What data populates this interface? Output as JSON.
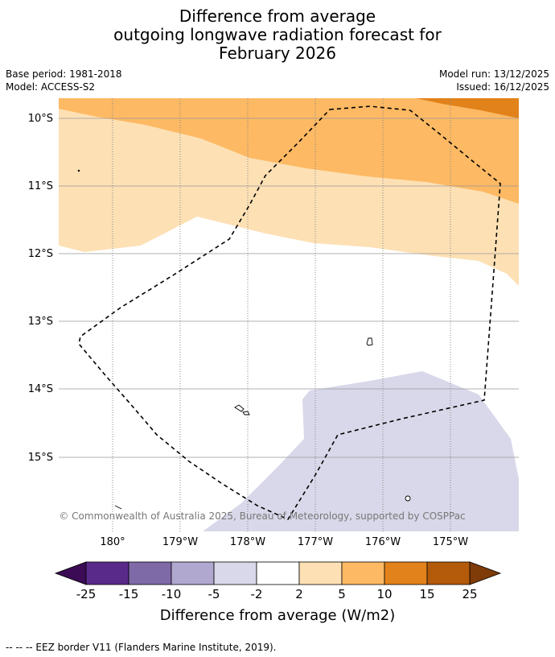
{
  "title": {
    "line1": "Difference from average",
    "line2": "outgoing longwave radiation forecast for",
    "line3": "February 2026"
  },
  "meta": {
    "base_period": "Base period: 1981-2018",
    "model": "Model: ACCESS-S2",
    "model_run": "Model run: 13/12/2025",
    "issued": "Issued: 16/12/2025"
  },
  "map": {
    "lat_labels": [
      "10°S",
      "11°S",
      "12°S",
      "13°S",
      "14°S",
      "15°S"
    ],
    "lon_labels": [
      "180°",
      "179°W",
      "178°W",
      "177°W",
      "176°W",
      "175°W"
    ],
    "copyright": "© Commonwealth of Australia 2025, Bureau of Meteorology, supported by COSPPac"
  },
  "colorbar": {
    "ticks": [
      "-25",
      "-15",
      "-10",
      "-5",
      "-2",
      "2",
      "5",
      "10",
      "15",
      "25"
    ],
    "colors": [
      "#5a2a8a",
      "#7f6aa8",
      "#b1a8d0",
      "#d8d8ea",
      "#ffffff",
      "#fde0b4",
      "#fdb963",
      "#e1821a",
      "#b35a0b"
    ],
    "under_color": "#3b0c55",
    "over_color": "#7f3b08",
    "label": "Difference from average (W/m2)"
  },
  "footer": "--  --  -- EEZ border V11 (Flanders Marine Institute, 2019)."
}
